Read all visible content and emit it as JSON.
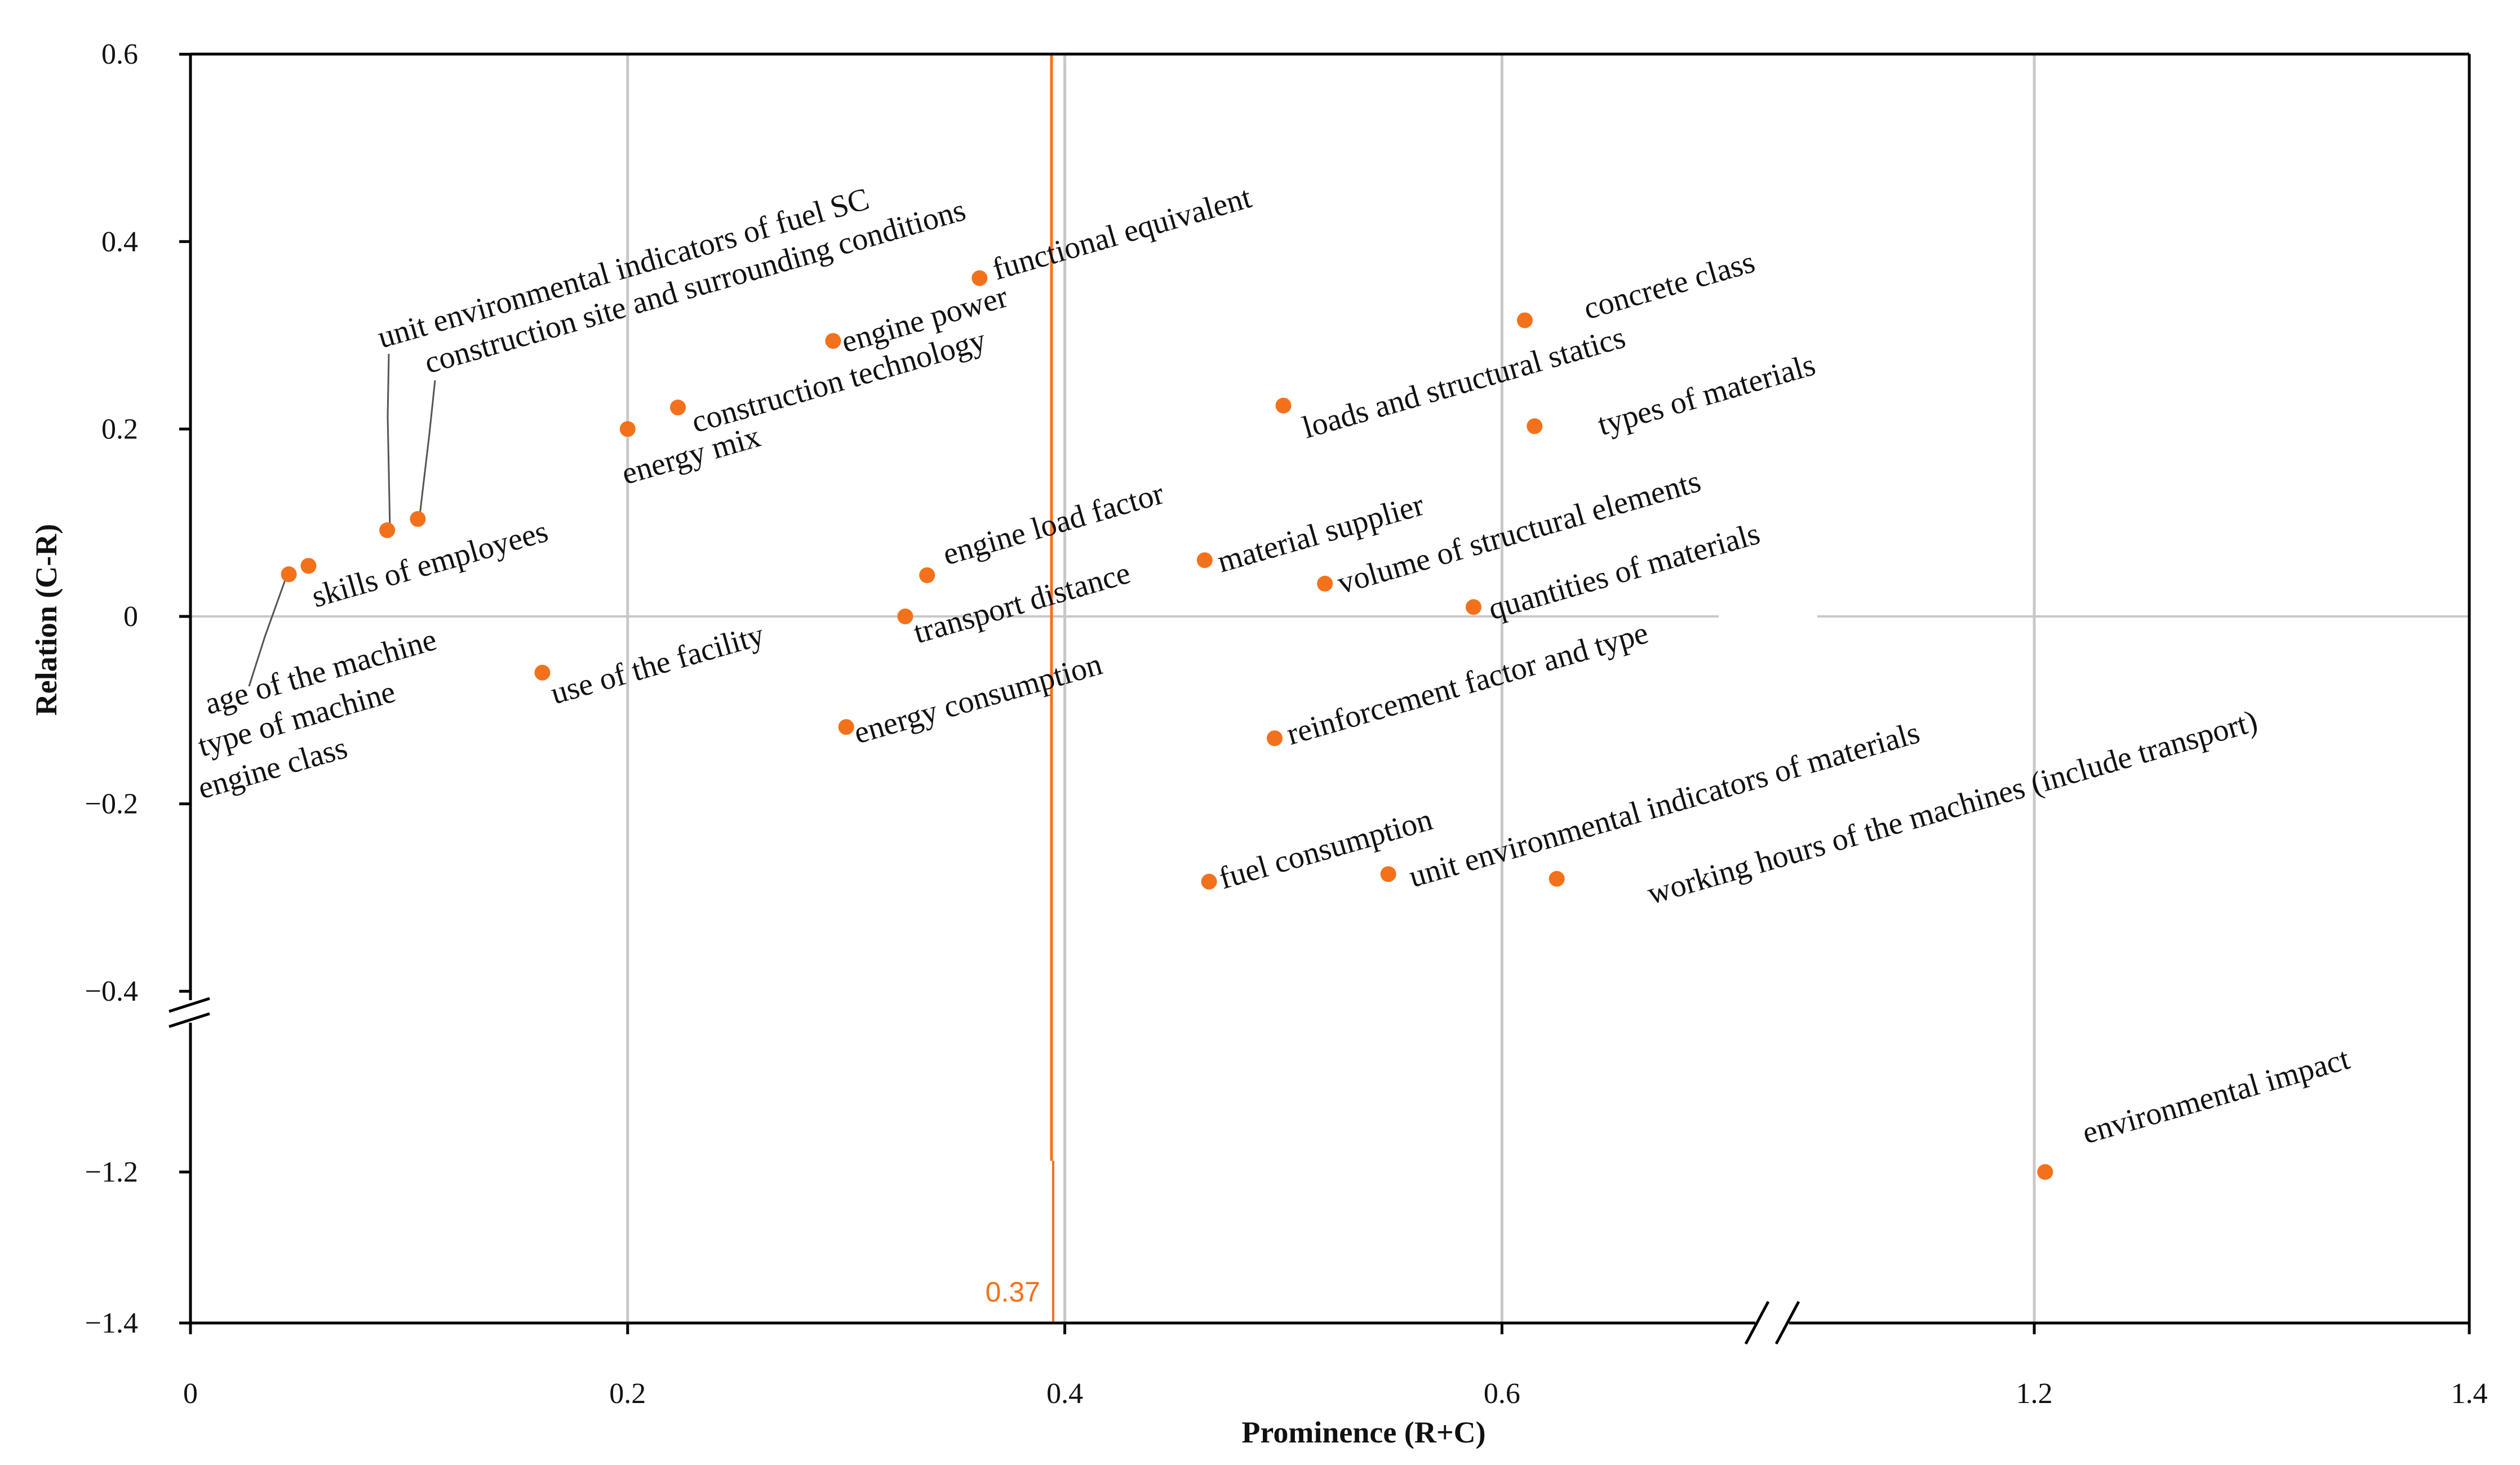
{
  "colors": {
    "accent": "#f4711c",
    "grid": "#c8c8c8",
    "axis": "#000000"
  },
  "chart_data": {
    "type": "scatter",
    "xlabel": "Prominence (R+C)",
    "ylabel": "Relation (C-R)",
    "xlim": [
      0,
      1.4
    ],
    "ylim": [
      -1.4,
      0.6
    ],
    "x_axis_break": {
      "after": 0.6,
      "before": 1.2
    },
    "y_axis_break": {
      "between": [
        -1.2,
        -0.4
      ]
    },
    "x_ticks": [
      {
        "value": 0,
        "label": "0"
      },
      {
        "value": 0.2,
        "label": "0.2"
      },
      {
        "value": 0.4,
        "label": "0.4"
      },
      {
        "value": 0.6,
        "label": "0.6"
      },
      {
        "value": 1.2,
        "label": "1.2"
      },
      {
        "value": 1.4,
        "label": "1.4"
      }
    ],
    "y_ticks": [
      {
        "value": 0.6,
        "label": "0.6"
      },
      {
        "value": 0.4,
        "label": "0.4"
      },
      {
        "value": 0.2,
        "label": "0.2"
      },
      {
        "value": 0,
        "label": "0"
      },
      {
        "value": -0.2,
        "label": "−0.2"
      },
      {
        "value": -0.4,
        "label": "−0.4"
      },
      {
        "value": -1.2,
        "label": "−1.2"
      },
      {
        "value": -1.4,
        "label": "−1.4"
      }
    ],
    "reference_line": {
      "x": 0.37,
      "label": "0.37"
    },
    "points": [
      {
        "label": "age of the machine",
        "x": 0.045,
        "y": 0.045
      },
      {
        "label": "type of machine",
        "x": 0.045,
        "y": 0.045
      },
      {
        "label": "engine class",
        "x": 0.045,
        "y": 0.045
      },
      {
        "label": "skills of employees",
        "x": 0.054,
        "y": 0.054
      },
      {
        "label": "unit environmental indicators of fuel SC",
        "x": 0.09,
        "y": 0.092
      },
      {
        "label": "construction site and surrounding conditions",
        "x": 0.104,
        "y": 0.104
      },
      {
        "label": "use of the facility",
        "x": 0.161,
        "y": -0.06
      },
      {
        "label": "energy mix",
        "x": 0.2,
        "y": 0.2
      },
      {
        "label": "construction technology",
        "x": 0.223,
        "y": 0.223
      },
      {
        "label": "engine power",
        "x": 0.294,
        "y": 0.294
      },
      {
        "label": "energy consumption",
        "x": 0.3,
        "y": -0.118
      },
      {
        "label": "transport distance",
        "x": 0.327,
        "y": 0
      },
      {
        "label": "engine load factor",
        "x": 0.337,
        "y": 0.044
      },
      {
        "label": "functional equivalent",
        "x": 0.361,
        "y": 0.361
      },
      {
        "label": "material supplier",
        "x": 0.464,
        "y": 0.06
      },
      {
        "label": "fuel consumption",
        "x": 0.466,
        "y": -0.283
      },
      {
        "label": "reinforcement factor and type",
        "x": 0.496,
        "y": -0.13
      },
      {
        "label": "loads and structural statics",
        "x": 0.5,
        "y": 0.225
      },
      {
        "label": "volume of structural elements",
        "x": 0.519,
        "y": 0.035
      },
      {
        "label": "unit environmental indicators of materials",
        "x": 0.548,
        "y": -0.275
      },
      {
        "label": "quantities of materials",
        "x": 0.587,
        "y": 0.01
      },
      {
        "label": "concrete class",
        "x": 0.626,
        "y": 0.316
      },
      {
        "label": "types of materials",
        "x": 0.637,
        "y": 0.203
      },
      {
        "label": "working hours of the machines (include transport)",
        "x": 0.662,
        "y": -0.28
      },
      {
        "label": "environmental impact",
        "x": 1.205,
        "y": -1.2
      }
    ]
  }
}
